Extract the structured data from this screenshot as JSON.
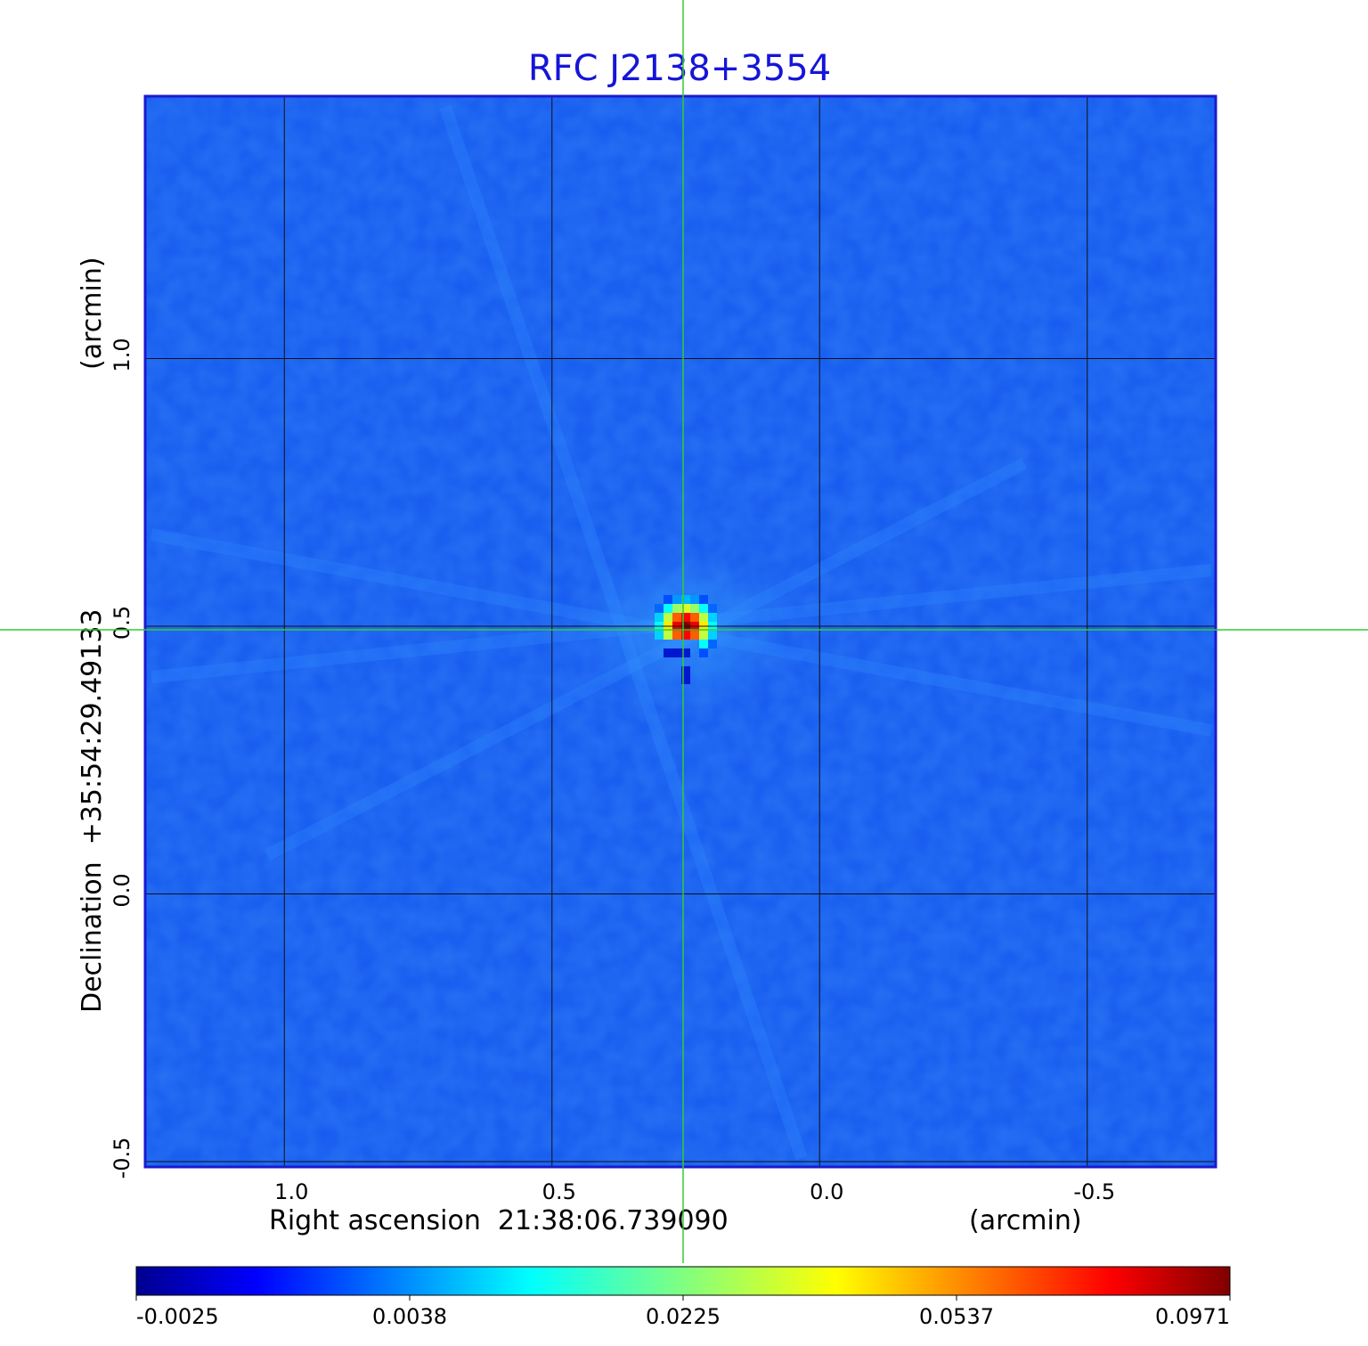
{
  "chart_data": {
    "type": "heatmap",
    "title": "RFC J2138+3554",
    "xlabel": "Right ascension  21:38:06.739090",
    "xunit": "(arcmin)",
    "ylabel": "Declination  +35:54:29.49133",
    "yunit": "(arcmin)",
    "x_ticks": [
      "1.0",
      "0.5",
      "0.0",
      "-0.5"
    ],
    "y_ticks": [
      "1.0",
      "0.5",
      "0.0",
      "-0.5"
    ],
    "xlim": [
      1.26,
      -0.74
    ],
    "ylim": [
      -0.51,
      1.49
    ],
    "grid": true,
    "colormap": "jet",
    "colorbar_ticks": [
      "-0.0025",
      "0.0038",
      "0.0225",
      "0.0537",
      "0.0971"
    ],
    "value_range": [
      -0.0025,
      0.0971
    ],
    "peak": {
      "x": 0.25,
      "y": 0.5,
      "value": 0.0971
    },
    "crosshair": {
      "x": 0.257,
      "y": 0.5,
      "color": "#33cc33"
    }
  }
}
